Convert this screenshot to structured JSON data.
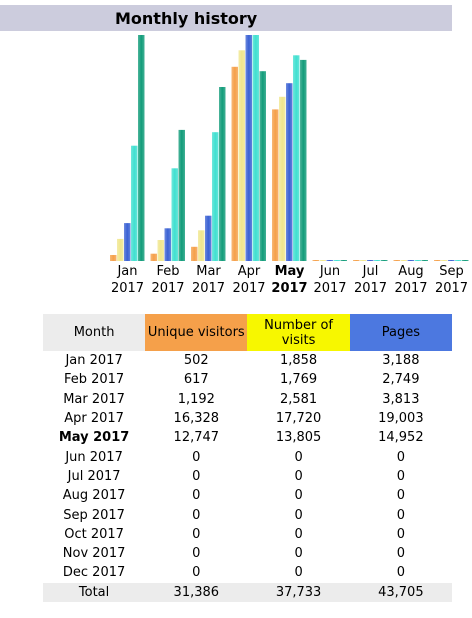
{
  "header": {
    "title": "Monthly history"
  },
  "colors": {
    "unique_visitors": "#f5a04a",
    "visits": "#f0e68c",
    "pages": "#3b62d4",
    "hits": "#40e0d0",
    "bandwidth": "#129c7a"
  },
  "chart_data": {
    "type": "bar",
    "categories": [
      "Jan 2017",
      "Feb 2017",
      "Mar 2017",
      "Apr 2017",
      "May 2017",
      "Jun 2017",
      "Jul 2017",
      "Aug 2017",
      "Sep 2017"
    ],
    "series": [
      {
        "values": [
          502,
          617,
          1192,
          16328,
          12747,
          0,
          0,
          0,
          0
        ]
      },
      {
        "values": [
          1858,
          1769,
          2581,
          17720,
          13805,
          0,
          0,
          0,
          0
        ]
      },
      {
        "values": [
          3188,
          2749,
          3813,
          19003,
          14952,
          0,
          0,
          0,
          0
        ]
      },
      {
        "values": [
          0.51,
          0.41,
          0.57,
          1.0,
          0.91,
          0,
          0,
          0,
          0
        ]
      },
      {
        "values": [
          1.0,
          0.58,
          0.77,
          0.84,
          0.89,
          0,
          0,
          0,
          0
        ]
      }
    ]
  },
  "table": {
    "headers": {
      "month": "Month",
      "unique_visitors": "Unique visitors",
      "visits": "Number of visits",
      "pages": "Pages"
    },
    "rows": [
      {
        "month": "Jan 2017",
        "unique": "502",
        "visits": "1,858",
        "pages": "3,188"
      },
      {
        "month": "Feb 2017",
        "unique": "617",
        "visits": "1,769",
        "pages": "2,749"
      },
      {
        "month": "Mar 2017",
        "unique": "1,192",
        "visits": "2,581",
        "pages": "3,813"
      },
      {
        "month": "Apr 2017",
        "unique": "16,328",
        "visits": "17,720",
        "pages": "19,003"
      },
      {
        "month": "May 2017",
        "unique": "12,747",
        "visits": "13,805",
        "pages": "14,952"
      },
      {
        "month": "Jun 2017",
        "unique": "0",
        "visits": "0",
        "pages": "0"
      },
      {
        "month": "Jul 2017",
        "unique": "0",
        "visits": "0",
        "pages": "0"
      },
      {
        "month": "Aug 2017",
        "unique": "0",
        "visits": "0",
        "pages": "0"
      },
      {
        "month": "Sep 2017",
        "unique": "0",
        "visits": "0",
        "pages": "0"
      },
      {
        "month": "Oct 2017",
        "unique": "0",
        "visits": "0",
        "pages": "0"
      },
      {
        "month": "Nov 2017",
        "unique": "0",
        "visits": "0",
        "pages": "0"
      },
      {
        "month": "Dec 2017",
        "unique": "0",
        "visits": "0",
        "pages": "0"
      }
    ],
    "total": {
      "label": "Total",
      "unique": "31,386",
      "visits": "37,733",
      "pages": "43,705"
    },
    "current_month": "May 2017"
  }
}
